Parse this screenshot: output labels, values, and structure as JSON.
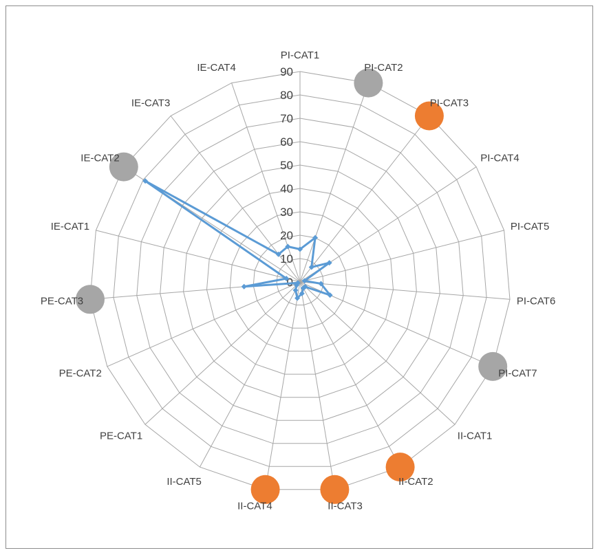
{
  "chart_data": {
    "type": "radar",
    "title": "",
    "categories": [
      "PI-CAT1",
      "PI-CAT2",
      "PI-CAT3",
      "PI-CAT4",
      "PI-CAT5",
      "PI-CAT6",
      "PI-CAT7",
      "II-CAT1",
      "II-CAT2",
      "II-CAT3",
      "II-CAT4",
      "II-CAT5",
      "PE-CAT1",
      "PE-CAT2",
      "PE-CAT3",
      "IE-CAT1",
      "IE-CAT2",
      "IE-CAT3",
      "IE-CAT4"
    ],
    "series": [
      {
        "values": [
          14,
          20,
          8,
          15,
          2,
          9,
          14,
          3,
          3,
          5,
          7,
          4,
          2,
          1,
          24,
          6,
          79,
          15,
          16
        ],
        "color": "#5b9bd5"
      }
    ],
    "rlim": [
      0,
      90
    ],
    "ticks": [
      "0",
      "10",
      "20",
      "30",
      "40",
      "50",
      "60",
      "70",
      "80",
      "90"
    ],
    "grid": true,
    "marker_colors": {
      "gray": "#a6a6a6",
      "orange": "#ed7d31"
    },
    "markers": [
      {
        "category": "PI-CAT2",
        "color": "gray"
      },
      {
        "category": "PI-CAT3",
        "color": "orange"
      },
      {
        "category": "PI-CAT7",
        "color": "gray"
      },
      {
        "category": "II-CAT2",
        "color": "orange"
      },
      {
        "category": "II-CAT3",
        "color": "orange"
      },
      {
        "category": "II-CAT4",
        "color": "orange"
      },
      {
        "category": "PE-CAT3",
        "color": "gray"
      },
      {
        "category": "IE-CAT2",
        "color": "gray"
      }
    ]
  }
}
